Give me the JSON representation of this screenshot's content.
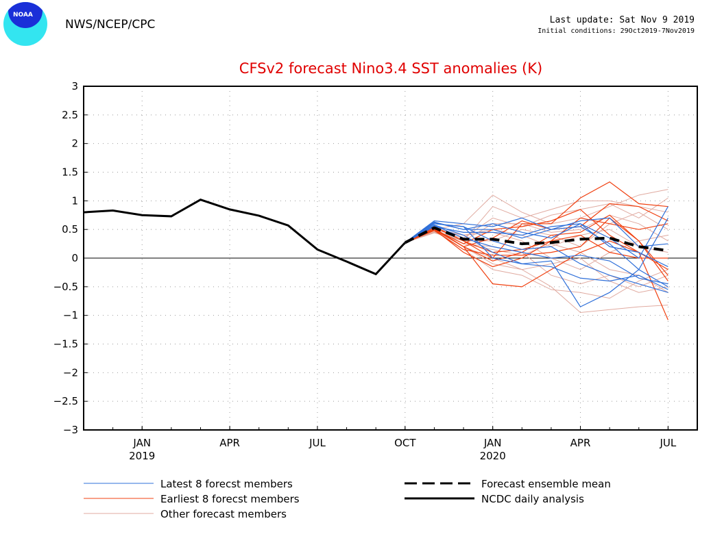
{
  "header": {
    "agency": "NWS/NCEP/CPC",
    "logo_text": "NOAA",
    "last_update": "Last update: Sat Nov 9 2019",
    "initial_conditions": "Initial conditions: 29Oct2019-7Nov2019"
  },
  "chart_data": {
    "type": "line",
    "title": "CFSv2 forecast Nino3.4 SST anomalies (K)",
    "ylim": [
      -3,
      3
    ],
    "yticks": [
      "3",
      "2.5",
      "2",
      "1.5",
      "1",
      "0.5",
      "0",
      "-0.5",
      "-1",
      "-1.5",
      "-2",
      "-2.5",
      "-3"
    ],
    "xlim": [
      "2018-11",
      "2020-08"
    ],
    "xticks": [
      {
        "label": "JAN",
        "sub": "2019",
        "month": "2019-01"
      },
      {
        "label": "APR",
        "sub": "",
        "month": "2019-04"
      },
      {
        "label": "JUL",
        "sub": "",
        "month": "2019-07"
      },
      {
        "label": "OCT",
        "sub": "",
        "month": "2019-10"
      },
      {
        "label": "JAN",
        "sub": "2020",
        "month": "2020-01"
      },
      {
        "label": "APR",
        "sub": "",
        "month": "2020-04"
      },
      {
        "label": "JUL",
        "sub": "",
        "month": "2020-07"
      }
    ],
    "grid": true,
    "colors": {
      "latest": "#2e6fd9",
      "earliest": "#f04010",
      "other": "#e0aaa0",
      "mean": "#000000",
      "analysis": "#000000"
    },
    "analysis": {
      "name": "NCDC daily analysis",
      "months": [
        "2018-11",
        "2018-12",
        "2019-01",
        "2019-02",
        "2019-03",
        "2019-04",
        "2019-05",
        "2019-06",
        "2019-07",
        "2019-08",
        "2019-09",
        "2019-10"
      ],
      "values": [
        0.8,
        0.83,
        0.75,
        0.73,
        1.02,
        0.85,
        0.74,
        0.57,
        0.15,
        -0.06,
        -0.28,
        0.27
      ]
    },
    "forecast_months": [
      "2019-10",
      "2019-11",
      "2019-12",
      "2020-01",
      "2020-02",
      "2020-03",
      "2020-04",
      "2020-05",
      "2020-06",
      "2020-07"
    ],
    "ensemble_mean": {
      "name": "Forecast ensemble mean",
      "values": [
        0.27,
        0.53,
        0.33,
        0.33,
        0.25,
        0.27,
        0.33,
        0.35,
        0.2,
        0.13
      ]
    },
    "latest_members": {
      "name": "Latest 8 forecst members",
      "values": [
        [
          0.27,
          0.65,
          0.6,
          0.55,
          0.7,
          0.5,
          0.55,
          0.25,
          -0.2,
          -0.5
        ],
        [
          0.27,
          0.6,
          0.55,
          0.3,
          0.15,
          0.2,
          -0.1,
          -0.3,
          -0.45,
          -0.6
        ],
        [
          0.27,
          0.62,
          0.5,
          0.6,
          0.45,
          0.35,
          0.6,
          0.35,
          0.0,
          0.9
        ],
        [
          0.27,
          0.58,
          0.4,
          0.1,
          -0.1,
          -0.05,
          -0.85,
          -0.6,
          -0.2,
          0.7
        ],
        [
          0.27,
          0.55,
          0.45,
          0.45,
          0.4,
          0.55,
          0.6,
          0.2,
          0.1,
          -0.15
        ],
        [
          0.27,
          0.6,
          0.55,
          0.0,
          -0.1,
          -0.15,
          -0.35,
          -0.4,
          -0.3,
          -0.55
        ],
        [
          0.27,
          0.63,
          0.5,
          0.5,
          0.35,
          0.5,
          0.65,
          0.7,
          0.2,
          0.25
        ],
        [
          0.27,
          0.57,
          0.35,
          0.2,
          0.1,
          0.0,
          0.05,
          -0.05,
          -0.35,
          -0.45
        ]
      ]
    },
    "earliest_members": {
      "name": "Earliest 8 forecst members",
      "values": [
        [
          0.27,
          0.5,
          0.2,
          -0.45,
          -0.5,
          -0.2,
          0.1,
          0.3,
          0.1,
          -1.08
        ],
        [
          0.27,
          0.55,
          0.3,
          0.0,
          0.6,
          0.6,
          1.05,
          1.33,
          0.95,
          0.9
        ],
        [
          0.27,
          0.5,
          0.1,
          -0.15,
          0.0,
          0.3,
          0.7,
          0.6,
          0.5,
          0.6
        ],
        [
          0.27,
          0.52,
          0.2,
          0.35,
          0.65,
          0.5,
          0.55,
          0.95,
          0.9,
          0.65
        ],
        [
          0.27,
          0.48,
          0.15,
          0.05,
          0.05,
          0.1,
          0.2,
          0.7,
          0.3,
          -0.4
        ],
        [
          0.27,
          0.5,
          0.25,
          0.5,
          0.55,
          0.65,
          0.85,
          0.4,
          0.1,
          -0.2
        ],
        [
          0.27,
          0.54,
          0.3,
          0.1,
          0.15,
          0.3,
          0.4,
          0.1,
          0.0,
          0.0
        ],
        [
          0.27,
          0.5,
          0.2,
          -0.05,
          0.1,
          0.4,
          0.45,
          0.75,
          0.3,
          -0.3
        ]
      ]
    },
    "other_members": {
      "name": "Other forecast members",
      "values": [
        [
          0.27,
          0.5,
          0.6,
          1.1,
          0.8,
          0.6,
          0.7,
          0.9,
          1.1,
          1.2
        ],
        [
          0.27,
          0.45,
          0.3,
          0.9,
          0.7,
          0.85,
          1.0,
          1.0,
          0.9,
          0.8
        ],
        [
          0.27,
          0.5,
          0.2,
          0.0,
          -0.2,
          -0.5,
          -0.95,
          -0.9,
          -0.85,
          -0.82
        ],
        [
          0.27,
          0.48,
          0.4,
          0.5,
          0.4,
          0.2,
          0.4,
          0.5,
          0.2,
          0.1
        ],
        [
          0.27,
          0.5,
          0.25,
          0.2,
          0.1,
          -0.3,
          -0.45,
          -0.3,
          -0.5,
          -0.3
        ],
        [
          0.27,
          0.46,
          0.35,
          0.7,
          0.55,
          0.75,
          0.85,
          0.95,
          0.7,
          1.05
        ],
        [
          0.27,
          0.5,
          0.2,
          -0.1,
          -0.2,
          -0.1,
          0.0,
          -0.4,
          -0.6,
          -0.5
        ],
        [
          0.27,
          0.52,
          0.4,
          0.45,
          0.3,
          0.0,
          -0.2,
          0.1,
          0.3,
          0.4
        ],
        [
          0.27,
          0.44,
          0.3,
          0.3,
          0.5,
          0.4,
          0.2,
          0.6,
          0.8,
          0.5
        ],
        [
          0.27,
          0.5,
          0.15,
          -0.2,
          -0.3,
          -0.55,
          -0.6,
          -0.7,
          -0.4,
          -0.2
        ],
        [
          0.27,
          0.48,
          0.3,
          0.6,
          0.6,
          0.45,
          0.5,
          0.75,
          0.6,
          0.3
        ],
        [
          0.27,
          0.5,
          0.25,
          0.15,
          0.05,
          0.25,
          0.1,
          -0.2,
          -0.3,
          -0.6
        ]
      ]
    }
  },
  "legend": {
    "latest": "Latest 8 forecst members",
    "earliest": "Earliest 8 forecst members",
    "other": "Other forecast members",
    "mean": "Forecast ensemble mean",
    "analysis": "NCDC daily analysis"
  }
}
